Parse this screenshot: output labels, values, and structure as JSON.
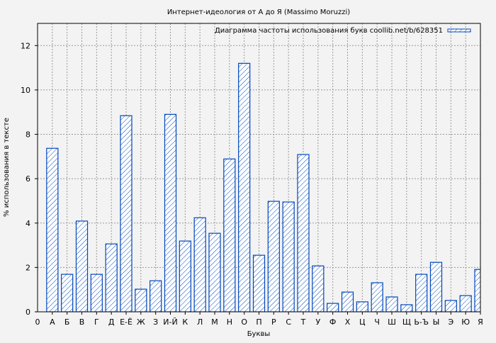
{
  "chart_data": {
    "type": "bar",
    "title": "Интернет-идеология от А до Я (Massimo Moruzzi)",
    "xlabel": "Буквы",
    "ylabel": "% использования в тексте",
    "x_origin_label": "0",
    "categories": [
      "А",
      "Б",
      "В",
      "Г",
      "Д",
      "Е-Ё",
      "Ж",
      "З",
      "И-Й",
      "К",
      "Л",
      "М",
      "Н",
      "О",
      "П",
      "Р",
      "С",
      "Т",
      "У",
      "Ф",
      "Х",
      "Ц",
      "Ч",
      "Ш",
      "Щ",
      "Ь-Ъ",
      "Ы",
      "Э",
      "Ю",
      "Я"
    ],
    "series": [
      {
        "name": "Диаграмма частоты использования букв coollib.net/b/628351",
        "values": [
          7.37,
          1.69,
          4.09,
          1.69,
          3.06,
          8.84,
          1.02,
          1.4,
          8.9,
          3.19,
          4.24,
          3.54,
          6.89,
          11.2,
          2.55,
          4.98,
          4.95,
          7.09,
          2.07,
          0.38,
          0.89,
          0.45,
          1.31,
          0.67,
          0.32,
          1.69,
          2.23,
          0.51,
          0.73,
          1.91
        ]
      }
    ],
    "ylim": [
      0,
      13
    ],
    "yticks": [
      0,
      2,
      4,
      6,
      8,
      10,
      12
    ],
    "grid": true,
    "legend": "top-right",
    "colors": {
      "bar": "#0047bb",
      "fill": "#ffffff",
      "grid": "#999999",
      "background": "#f3f3f3"
    },
    "pattern": "diagonal-hatch"
  }
}
